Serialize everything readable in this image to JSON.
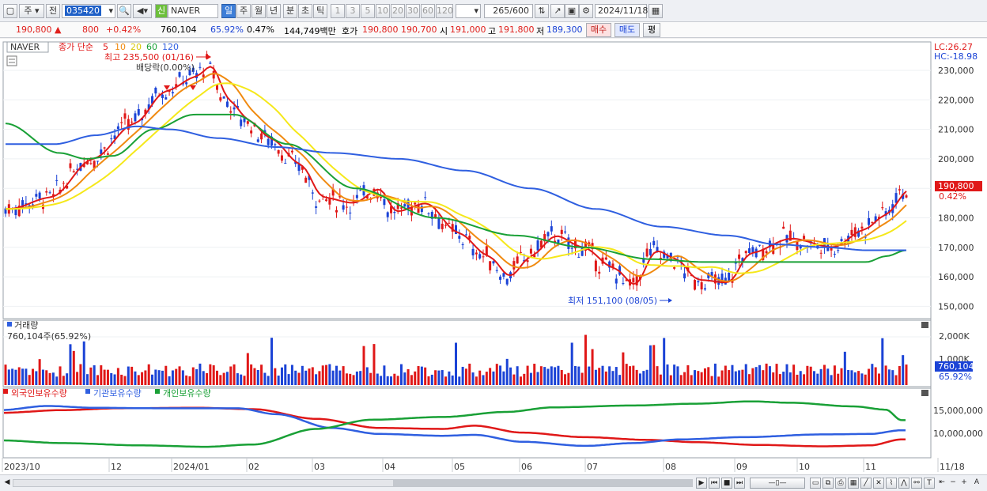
{
  "toolbar": {
    "tab_stock": "주",
    "tab_prev": "전",
    "code": "035420",
    "name_badge": "신",
    "name": "NAVER",
    "periods": [
      "일",
      "주",
      "월",
      "년",
      "분",
      "초",
      "틱"
    ],
    "active_period": "일",
    "intervals": [
      "1",
      "3",
      "5",
      "10",
      "20",
      "30",
      "60",
      "120"
    ],
    "count": "265",
    "count_max": "/600",
    "date": "2024/11/18"
  },
  "quote": {
    "price": "190,800",
    "change_arrow": "▲",
    "change": "800",
    "change_pct": "+0.42%",
    "volume": "760,104",
    "volume_ratio": "65.92%",
    "turnover_ratio": "0.47%",
    "amount": "144,749백만",
    "bid_label": "호가",
    "ask": "190,800",
    "bid": "190,700",
    "open_label": "시",
    "open": "191,000",
    "high_label": "고",
    "high": "191,800",
    "low_label": "저",
    "low": "189,300",
    "buy_label": "매수",
    "sell_label": "매도",
    "eval_label": "평"
  },
  "price_panel": {
    "name": "NAVER",
    "legend_label": "종가 단순",
    "ma_periods": [
      "5",
      "10",
      "20",
      "60",
      "120"
    ],
    "ma_colors": [
      "#e01818",
      "#f08a10",
      "#f5e81a",
      "#19a036",
      "#2f5fe0"
    ],
    "high_note": "최고 235,500 (01/16)",
    "dividend_note": "배당락(0.00%)",
    "low_note": "최저 151,100 (08/05)",
    "lc": "LC:26.27",
    "hc": "HC:-18.98",
    "last_price": "190,800",
    "last_pct": "0.42%",
    "y_ticks": [
      "230,000",
      "220,000",
      "210,000",
      "200,000",
      "190,000",
      "180,000",
      "170,000",
      "160,000",
      "150,000"
    ]
  },
  "volume_panel": {
    "title": "거래량",
    "value": "760,104주(65.92%)",
    "y_ticks": [
      "2,000K",
      "1,000K"
    ],
    "last_value": "760,104",
    "last_pct": "65.92%"
  },
  "holding_panel": {
    "legend": [
      {
        "label": "외국인보유수량",
        "color": "#e01818"
      },
      {
        "label": "기관보유수량",
        "color": "#2f5fe0"
      },
      {
        "label": "개인보유수량",
        "color": "#19a036"
      }
    ],
    "y_ticks": [
      "15,000,000",
      "10,000,000"
    ]
  },
  "x_axis": [
    "2023/10",
    "12",
    "2024/01",
    "02",
    "03",
    "04",
    "05",
    "06",
    "07",
    "08",
    "09",
    "10",
    "11",
    "11/18"
  ]
}
